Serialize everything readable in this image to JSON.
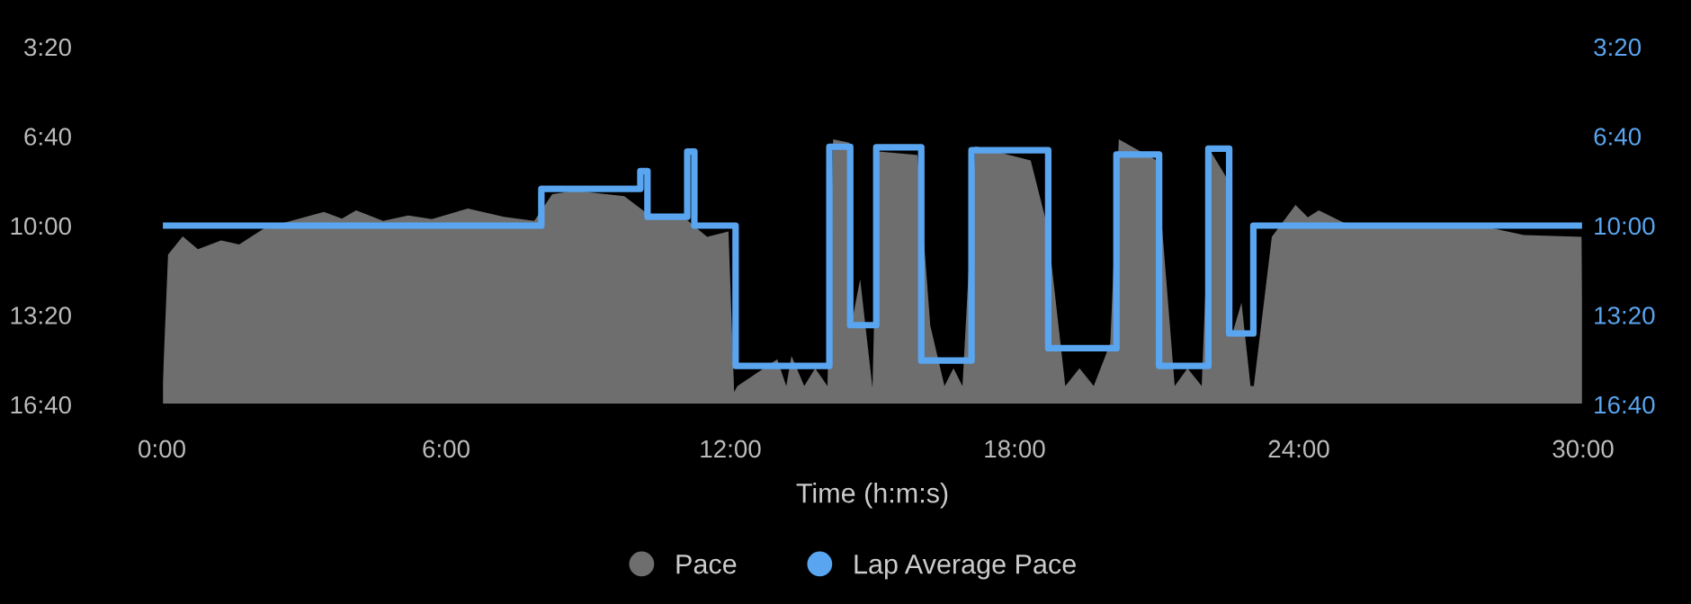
{
  "chart_data": {
    "type": "area",
    "xlabel": "Time (h:m:s)",
    "xlim": [
      0,
      30
    ],
    "xticks": [
      {
        "value": 0,
        "label": "0:00"
      },
      {
        "value": 6,
        "label": "6:00"
      },
      {
        "value": 12,
        "label": "12:00"
      },
      {
        "value": 18,
        "label": "18:00"
      },
      {
        "value": 24,
        "label": "24:00"
      },
      {
        "value": 30,
        "label": "30:00"
      }
    ],
    "ylim": [
      16.667,
      3.333
    ],
    "yticks": [
      {
        "value": 3.333,
        "label": "3:20"
      },
      {
        "value": 6.667,
        "label": "6:40"
      },
      {
        "value": 10,
        "label": "10:00"
      },
      {
        "value": 13.333,
        "label": "13:20"
      },
      {
        "value": 16.667,
        "label": "16:40"
      }
    ],
    "y2lim": [
      16.667,
      3.333
    ],
    "y2ticks": [
      {
        "value": 3.333,
        "label": "3:20"
      },
      {
        "value": 6.667,
        "label": "6:40"
      },
      {
        "value": 10,
        "label": "10:00"
      },
      {
        "value": 13.333,
        "label": "13:20"
      },
      {
        "value": 16.667,
        "label": "16:40"
      }
    ],
    "grid": false,
    "legend": "bottom",
    "series": [
      {
        "name": "Pace",
        "color": "#6e6e6e",
        "x": [
          0,
          0.13,
          0.44,
          0.76,
          1.25,
          1.63,
          2.17,
          3.42,
          3.8,
          4.1,
          4.67,
          5.2,
          5.7,
          6.46,
          7.22,
          7.86,
          8.24,
          8.73,
          9.76,
          10.25,
          11.0,
          11.51,
          11.96,
          12.08,
          12.15,
          12.99,
          13.18,
          13.29,
          13.56,
          13.79,
          14.05,
          14.17,
          14.51,
          14.55,
          14.74,
          15.0,
          15.12,
          15.95,
          16.22,
          16.52,
          16.71,
          16.9,
          17.17,
          18.34,
          18.69,
          19.07,
          19.37,
          19.67,
          20.02,
          20.2,
          21.0,
          21.38,
          21.65,
          21.95,
          22.14,
          22.48,
          22.6,
          22.79,
          22.98,
          23.05,
          23.43,
          23.93,
          24.19,
          24.42,
          24.95,
          26.2,
          27.72,
          28.75,
          29.97,
          30
        ],
        "values": [
          16.667,
          11.08,
          10.4,
          10.88,
          10.55,
          10.7,
          10.09,
          9.49,
          9.74,
          9.43,
          9.82,
          9.62,
          9.76,
          9.36,
          9.67,
          9.82,
          8.83,
          8.7,
          8.9,
          9.56,
          9.67,
          10.42,
          10.22,
          16.2,
          15.98,
          14.98,
          15.98,
          14.86,
          15.98,
          15.32,
          15.98,
          6.78,
          6.91,
          13.73,
          12.0,
          16.05,
          7.24,
          7.37,
          13.73,
          15.98,
          15.32,
          15.98,
          7.04,
          7.57,
          10.02,
          15.98,
          15.32,
          15.98,
          14.39,
          6.78,
          7.57,
          15.98,
          15.32,
          15.98,
          7.24,
          8.23,
          14.0,
          12.87,
          15.98,
          15.98,
          10.42,
          9.23,
          9.69,
          9.43,
          9.89,
          10.02,
          9.96,
          10.35,
          10.42,
          16.667
        ]
      },
      {
        "name": "Lap Average Pace",
        "type": "step",
        "axis": "y2",
        "color": "#5aa5f0",
        "x": [
          0,
          8.01,
          10.1,
          10.25,
          11.09,
          11.24,
          12.11,
          14.09,
          14.53,
          15.08,
          16.03,
          17.09,
          18.71,
          20.15,
          21.05,
          22.09,
          22.53,
          23.04,
          30
        ],
        "values": [
          10.0,
          8.63,
          7.97,
          9.67,
          7.24,
          10.0,
          15.23,
          7.06,
          13.71,
          7.08,
          15.03,
          7.19,
          14.57,
          7.35,
          15.23,
          7.13,
          14.02,
          10.0,
          10.0
        ]
      }
    ]
  }
}
